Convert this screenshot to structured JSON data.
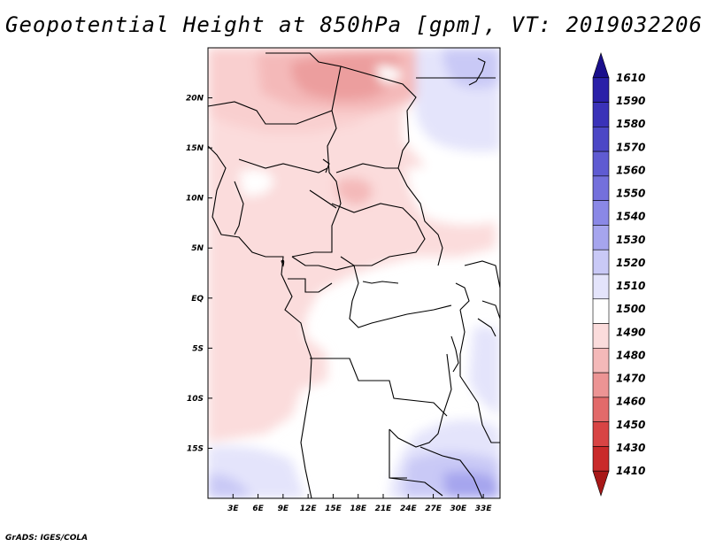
{
  "title": "Geopotential Height at 850hPa [gpm], VT: 2019032206",
  "credit": "GrADS: IGES/COLA",
  "map": {
    "lon_labels": [
      "3E",
      "6E",
      "9E",
      "12E",
      "15E",
      "18E",
      "21E",
      "24E",
      "27E",
      "30E",
      "33E"
    ],
    "lon_values": [
      3,
      6,
      9,
      12,
      15,
      18,
      21,
      24,
      27,
      30,
      33
    ],
    "lat_labels": [
      "20N",
      "15N",
      "10N",
      "5N",
      "EQ",
      "5S",
      "10S",
      "15S"
    ],
    "lat_values": [
      20,
      15,
      10,
      5,
      0,
      -5,
      -10,
      -15
    ],
    "lon_range": [
      0,
      35
    ],
    "lat_range": [
      -20,
      25
    ]
  },
  "colorbar": {
    "labels": [
      "1610",
      "1590",
      "1580",
      "1570",
      "1560",
      "1550",
      "1540",
      "1530",
      "1520",
      "1510",
      "1500",
      "1490",
      "1480",
      "1470",
      "1460",
      "1450",
      "1430",
      "1410"
    ],
    "colors": [
      "#1a0f8c",
      "#2a20a8",
      "#3a32b8",
      "#4c47c6",
      "#5f5bd2",
      "#7470dc",
      "#8a88e6",
      "#a6a5ee",
      "#c9c9f6",
      "#e4e4fb",
      "#ffffff",
      "#fbdcdc",
      "#f4b9b9",
      "#ec9494",
      "#e26a6a",
      "#d84444",
      "#c92a2a",
      "#a81818"
    ]
  }
}
